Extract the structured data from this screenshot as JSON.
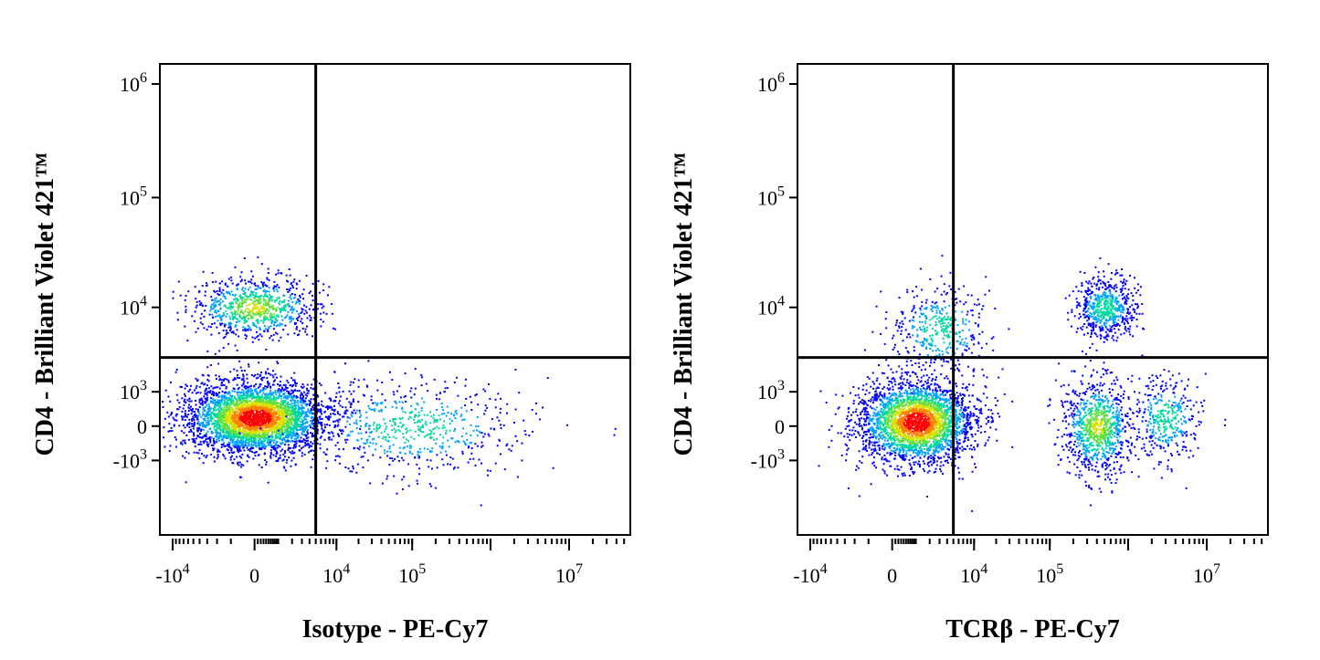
{
  "figure": {
    "background": "#ffffff",
    "density_colors": [
      "#0000ff",
      "#00a0ff",
      "#00d8a0",
      "#60e040",
      "#d8e000",
      "#ff8000",
      "#ff0000"
    ]
  },
  "chart_data": [
    {
      "type": "scatter",
      "subtype": "flow-cytometry-density-dot-plot",
      "xlabel": "Isotype - PE-Cy7",
      "ylabel": "CD4 - Brilliant Violet 421™",
      "x_ticks": [
        "-10^4",
        "0",
        "10^4",
        "10^5",
        "10^7"
      ],
      "y_ticks": [
        "10^6",
        "10^5",
        "10^4",
        "10^3",
        "0",
        "-10^3"
      ],
      "x_scale": "biexponential",
      "y_scale": "biexponential",
      "x_gate": 5000,
      "y_gate": 3000,
      "quadrant_lines": true,
      "populations": [
        {
          "name": "",
          "x_center": 0,
          "y_center": 200,
          "x_spread": 3000,
          "y_spread": 600,
          "relative_size": 0.7
        },
        {
          "name": "",
          "x_center": 0,
          "y_center": 10000,
          "x_spread": 2500,
          "y_spread": 4000,
          "relative_size": 0.16
        },
        {
          "name": "",
          "x_center": 100000,
          "y_center": 0,
          "x_spread": 1000000,
          "y_spread": 800,
          "relative_size": 0.12
        }
      ]
    },
    {
      "type": "scatter",
      "subtype": "flow-cytometry-density-dot-plot",
      "xlabel": "TCRβ - PE-Cy7",
      "ylabel": "CD4 - Brilliant Violet 421™",
      "x_ticks": [
        "-10^4",
        "0",
        "10^4",
        "10^5",
        "10^7"
      ],
      "y_ticks": [
        "10^6",
        "10^5",
        "10^4",
        "10^3",
        "0",
        "-10^3"
      ],
      "x_scale": "biexponential",
      "y_scale": "biexponential",
      "x_gate": 5000,
      "y_gate": 3000,
      "quadrant_lines": true,
      "populations": [
        {
          "name": "",
          "x_center": 1000,
          "y_center": 100,
          "x_spread": 4000,
          "y_spread": 700,
          "relative_size": 0.55
        },
        {
          "name": "",
          "x_center": 400000,
          "y_center": 0,
          "x_spread": 300000,
          "y_spread": 800,
          "relative_size": 0.18
        },
        {
          "name": "",
          "x_center": 500000,
          "y_center": 10000,
          "x_spread": 300000,
          "y_spread": 4000,
          "relative_size": 0.12
        },
        {
          "name": "",
          "x_center": 3000,
          "y_center": 6000,
          "x_spread": 6000,
          "y_spread": 5000,
          "relative_size": 0.08
        },
        {
          "name": "",
          "x_center": 3000000,
          "y_center": 200,
          "x_spread": 2000000,
          "y_spread": 800,
          "relative_size": 0.07
        }
      ]
    }
  ]
}
